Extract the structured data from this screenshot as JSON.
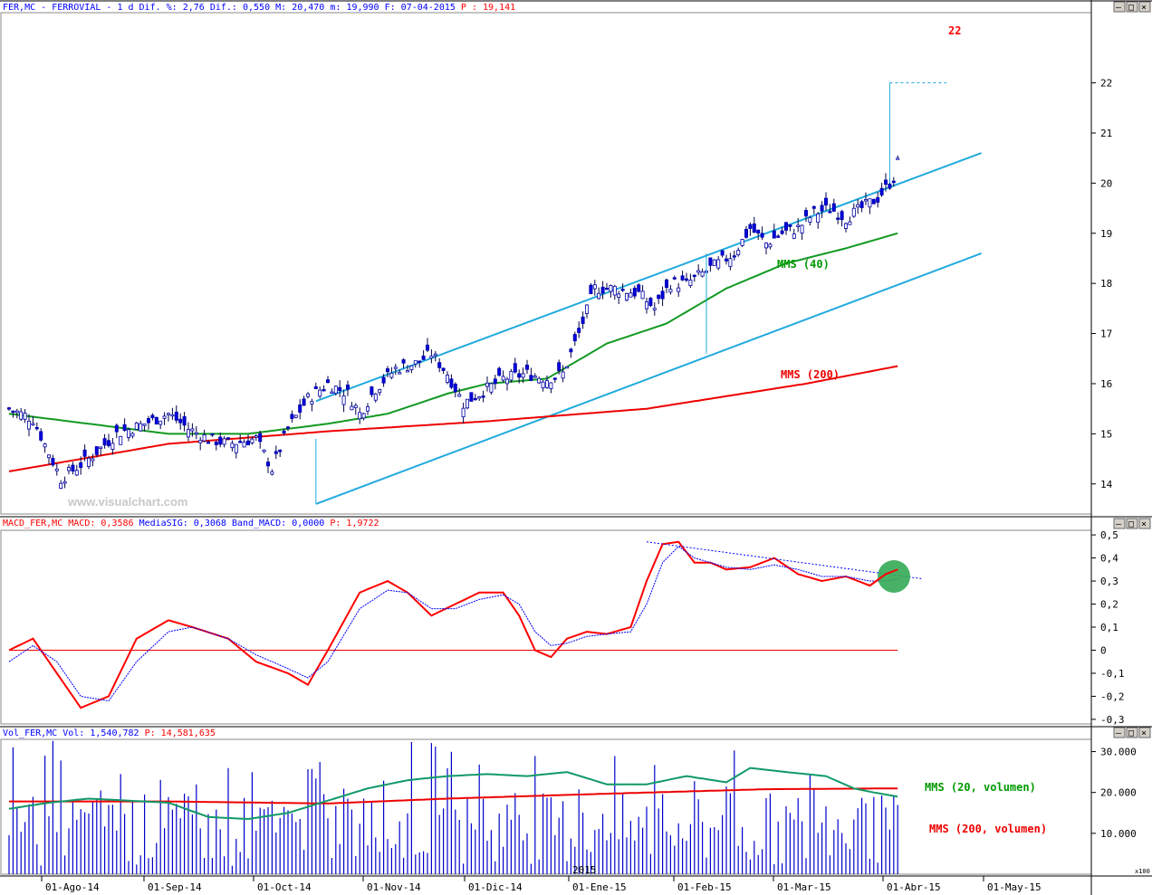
{
  "panels": {
    "price": {
      "symbol": "FER,MC",
      "name": "FERROVIAL",
      "period": "1 d",
      "dif_pct_label": "Dif. %:",
      "dif_pct": "2,76",
      "dif_label": "Dif.:",
      "dif": "0,550",
      "max_label": "M:",
      "max": "20,470",
      "min_label": "m:",
      "min": "19,990",
      "date_label": "F:",
      "date": "07-04-2015",
      "p_label": "P :",
      "p": "19,141"
    },
    "macd": {
      "prefix": "MACD_FER,MC",
      "macd_label": "MACD:",
      "macd": "0,3586",
      "sig_label": "MediaSIG:",
      "sig": "0,3068",
      "band_label": "Band_MACD:",
      "band": "0,0000",
      "p_label": "P:",
      "p": "1,9722"
    },
    "volume": {
      "prefix": "Vol_FER,MC",
      "vol_label": "Vol:",
      "vol": "1,540,782",
      "p_label": "P:",
      "p": "14,581,635",
      "scale_badge": "x100"
    }
  },
  "watermark": "www.visualchart.com",
  "year_label": "2015",
  "window_buttons": [
    "–",
    "□",
    "×"
  ],
  "chart_data": [
    {
      "type": "candlestick",
      "panel": "price",
      "ylim": [
        13.4,
        23.4
      ],
      "yticks": [
        "22",
        "21",
        "20",
        "19",
        "18",
        "17",
        "16",
        "15",
        "14"
      ],
      "x_labels": [
        "01-Ago-14",
        "01-Sep-14",
        "01-Oct-14",
        "01-Nov-14",
        "01-Dic-14",
        "01-Ene-15",
        "01-Feb-15",
        "01-Mar-15",
        "01-Abr-15",
        "01-May-15"
      ],
      "close_anchors": [
        [
          0,
          15.5
        ],
        [
          6,
          15.3
        ],
        [
          13,
          14.1
        ],
        [
          20,
          14.5
        ],
        [
          27,
          15.0
        ],
        [
          34,
          15.2
        ],
        [
          40,
          15.4
        ],
        [
          45,
          15.1
        ],
        [
          50,
          14.9
        ],
        [
          55,
          14.8
        ],
        [
          62,
          14.9
        ],
        [
          66,
          14.3
        ],
        [
          70,
          15.1
        ],
        [
          75,
          15.7
        ],
        [
          80,
          16.0
        ],
        [
          85,
          15.8
        ],
        [
          88,
          15.4
        ],
        [
          92,
          15.9
        ],
        [
          97,
          16.3
        ],
        [
          102,
          16.4
        ],
        [
          106,
          16.6
        ],
        [
          110,
          16.2
        ],
        [
          114,
          15.6
        ],
        [
          118,
          15.8
        ],
        [
          124,
          16.1
        ],
        [
          130,
          16.2
        ],
        [
          135,
          16.1
        ],
        [
          139,
          16.2
        ],
        [
          143,
          17.0
        ],
        [
          147,
          17.9
        ],
        [
          152,
          17.9
        ],
        [
          158,
          17.8
        ],
        [
          162,
          17.5
        ],
        [
          166,
          18.0
        ],
        [
          170,
          18.0
        ],
        [
          174,
          18.2
        ],
        [
          178,
          18.4
        ],
        [
          182,
          18.6
        ],
        [
          186,
          19.1
        ],
        [
          190,
          18.8
        ],
        [
          194,
          19.0
        ],
        [
          198,
          19.1
        ],
        [
          202,
          19.4
        ],
        [
          206,
          19.5
        ],
        [
          210,
          19.3
        ],
        [
          214,
          19.5
        ],
        [
          218,
          19.7
        ],
        [
          222,
          20.1
        ],
        [
          223,
          20.4
        ]
      ],
      "ma40_label": "MMS (40)",
      "ma200_label": "MMS (200)",
      "ma40_anchors": [
        [
          0,
          15.4
        ],
        [
          20,
          15.2
        ],
        [
          40,
          15.0
        ],
        [
          60,
          15.0
        ],
        [
          80,
          15.2
        ],
        [
          95,
          15.4
        ],
        [
          110,
          15.8
        ],
        [
          120,
          16.0
        ],
        [
          135,
          16.1
        ],
        [
          150,
          16.8
        ],
        [
          165,
          17.2
        ],
        [
          180,
          17.9
        ],
        [
          195,
          18.4
        ],
        [
          210,
          18.7
        ],
        [
          223,
          19.0
        ]
      ],
      "ma200_anchors": [
        [
          0,
          14.25
        ],
        [
          40,
          14.8
        ],
        [
          80,
          15.05
        ],
        [
          120,
          15.25
        ],
        [
          160,
          15.5
        ],
        [
          200,
          16.0
        ],
        [
          223,
          16.35
        ]
      ],
      "channel_upper": [
        [
          77,
          15.65
        ],
        [
          244,
          20.6
        ]
      ],
      "channel_lower": [
        [
          77,
          13.6
        ],
        [
          244,
          18.6
        ]
      ],
      "target_label": "22",
      "target_value": 22.0,
      "target_from": 20.0,
      "mid_measure": [
        16.6,
        18.6
      ]
    },
    {
      "type": "line",
      "panel": "macd",
      "ylim": [
        -0.32,
        0.52
      ],
      "yticks": [
        "0,5",
        "0,4",
        "0,3",
        "0,2",
        "0,1",
        "0",
        "-0,1",
        "-0,2",
        "-0,3"
      ],
      "series": [
        {
          "name": "MACD",
          "color": "#ff0000",
          "anchors": [
            [
              0,
              0.0
            ],
            [
              6,
              0.05
            ],
            [
              12,
              -0.1
            ],
            [
              18,
              -0.25
            ],
            [
              25,
              -0.2
            ],
            [
              32,
              0.05
            ],
            [
              40,
              0.13
            ],
            [
              46,
              0.1
            ],
            [
              55,
              0.05
            ],
            [
              62,
              -0.05
            ],
            [
              70,
              -0.1
            ],
            [
              75,
              -0.15
            ],
            [
              80,
              0.0
            ],
            [
              88,
              0.25
            ],
            [
              95,
              0.3
            ],
            [
              100,
              0.25
            ],
            [
              106,
              0.15
            ],
            [
              112,
              0.2
            ],
            [
              118,
              0.25
            ],
            [
              124,
              0.25
            ],
            [
              128,
              0.15
            ],
            [
              132,
              0.0
            ],
            [
              136,
              -0.03
            ],
            [
              140,
              0.05
            ],
            [
              145,
              0.08
            ],
            [
              150,
              0.07
            ],
            [
              156,
              0.1
            ],
            [
              160,
              0.3
            ],
            [
              164,
              0.46
            ],
            [
              168,
              0.47
            ],
            [
              172,
              0.38
            ],
            [
              176,
              0.38
            ],
            [
              180,
              0.35
            ],
            [
              186,
              0.36
            ],
            [
              192,
              0.4
            ],
            [
              198,
              0.33
            ],
            [
              204,
              0.3
            ],
            [
              210,
              0.32
            ],
            [
              216,
              0.28
            ],
            [
              220,
              0.33
            ],
            [
              223,
              0.35
            ]
          ]
        },
        {
          "name": "MediaSIG",
          "color": "#0000ff",
          "anchors": [
            [
              0,
              -0.05
            ],
            [
              6,
              0.02
            ],
            [
              12,
              -0.05
            ],
            [
              18,
              -0.2
            ],
            [
              25,
              -0.22
            ],
            [
              32,
              -0.05
            ],
            [
              40,
              0.08
            ],
            [
              46,
              0.1
            ],
            [
              55,
              0.05
            ],
            [
              62,
              -0.02
            ],
            [
              70,
              -0.08
            ],
            [
              75,
              -0.12
            ],
            [
              80,
              -0.05
            ],
            [
              88,
              0.18
            ],
            [
              95,
              0.26
            ],
            [
              100,
              0.25
            ],
            [
              106,
              0.18
            ],
            [
              112,
              0.18
            ],
            [
              118,
              0.22
            ],
            [
              124,
              0.24
            ],
            [
              128,
              0.2
            ],
            [
              132,
              0.08
            ],
            [
              136,
              0.02
            ],
            [
              140,
              0.03
            ],
            [
              145,
              0.06
            ],
            [
              150,
              0.07
            ],
            [
              156,
              0.08
            ],
            [
              160,
              0.2
            ],
            [
              164,
              0.38
            ],
            [
              168,
              0.45
            ],
            [
              172,
              0.4
            ],
            [
              176,
              0.38
            ],
            [
              180,
              0.36
            ],
            [
              186,
              0.35
            ],
            [
              192,
              0.37
            ],
            [
              198,
              0.35
            ],
            [
              204,
              0.32
            ],
            [
              210,
              0.32
            ],
            [
              216,
              0.3
            ],
            [
              220,
              0.3
            ],
            [
              223,
              0.31
            ]
          ]
        }
      ]
    },
    {
      "type": "bar",
      "panel": "volume",
      "ylim": [
        0,
        33000
      ],
      "yticks": [
        "30.000",
        "20.000",
        "10.000"
      ],
      "ma20_label": "MMS (20, volumen)",
      "ma200_label": "MMS (200, volumen)",
      "ma20_anchors": [
        [
          0,
          16
        ],
        [
          10,
          17.5
        ],
        [
          20,
          18.5
        ],
        [
          30,
          18
        ],
        [
          40,
          17.5
        ],
        [
          50,
          14
        ],
        [
          60,
          13.5
        ],
        [
          70,
          15
        ],
        [
          80,
          18
        ],
        [
          90,
          21
        ],
        [
          100,
          23
        ],
        [
          110,
          24
        ],
        [
          120,
          24.5
        ],
        [
          130,
          24
        ],
        [
          140,
          25
        ],
        [
          150,
          22
        ],
        [
          160,
          22
        ],
        [
          170,
          24
        ],
        [
          180,
          22.5
        ],
        [
          186,
          26
        ],
        [
          195,
          25
        ],
        [
          205,
          24
        ],
        [
          212,
          21
        ],
        [
          217,
          20
        ],
        [
          223,
          19
        ]
      ],
      "ma200_anchors": [
        [
          0,
          17.8
        ],
        [
          40,
          17.8
        ],
        [
          80,
          17.3
        ],
        [
          110,
          18.5
        ],
        [
          150,
          19.7
        ],
        [
          190,
          20.8
        ],
        [
          223,
          21
        ]
      ]
    }
  ]
}
